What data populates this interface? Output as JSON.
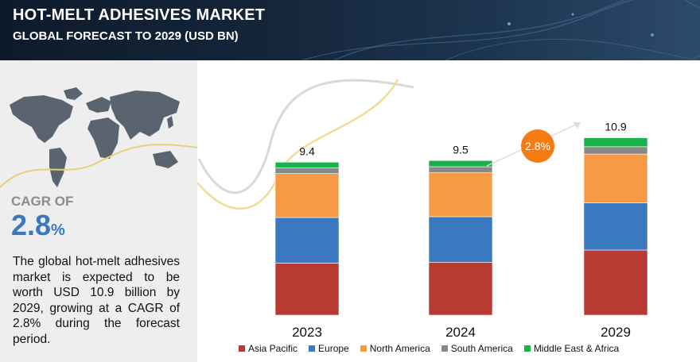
{
  "header": {
    "title": "HOT-MELT ADHESIVES MARKET",
    "subtitle": "GLOBAL FORECAST TO 2029 (USD BN)"
  },
  "left_panel": {
    "cagr_label": "CAGR OF",
    "cagr_number": "2.8",
    "cagr_symbol": "%",
    "description": "The global hot-melt adhesives market is expected to be worth USD 10.9 billion by 2029, growing at a CAGR of 2.8% during the forecast period."
  },
  "chart_data": {
    "type": "bar",
    "stacked": true,
    "categories": [
      "2023",
      "2024",
      "2029"
    ],
    "totals": [
      "9.4",
      "9.5",
      "10.9"
    ],
    "ylim": [
      0,
      11.5
    ],
    "series": [
      {
        "name": "Asia Pacific",
        "color": "#b83a32",
        "values": [
          3.2,
          3.25,
          4.0
        ]
      },
      {
        "name": "Europe",
        "color": "#3a78bf",
        "values": [
          2.8,
          2.8,
          2.9
        ]
      },
      {
        "name": "North America",
        "color": "#f79a45",
        "values": [
          2.7,
          2.7,
          3.0
        ]
      },
      {
        "name": "South America",
        "color": "#888888",
        "values": [
          0.35,
          0.37,
          0.45
        ]
      },
      {
        "name": "Middle East & Africa",
        "color": "#17b34a",
        "values": [
          0.35,
          0.38,
          0.55
        ]
      }
    ],
    "annotation": {
      "text": "2.8%",
      "color": "#f57c12"
    },
    "legend_position": "bottom",
    "grid": false
  }
}
